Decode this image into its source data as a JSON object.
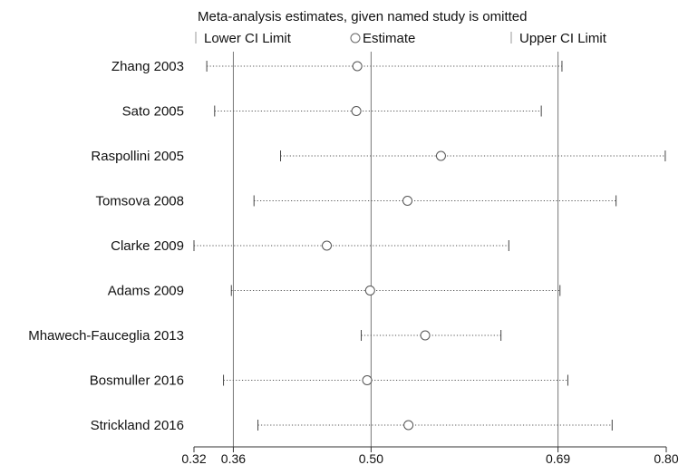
{
  "chart_data": {
    "type": "forest",
    "title": "Meta-analysis estimates, given named study is omitted",
    "legend": {
      "placement": "top",
      "lower_label": "Lower CI Limit",
      "estimate_label": "Estimate",
      "upper_label": "Upper CI Limit"
    },
    "x_ticks": [
      {
        "value": 0.32,
        "label": "0.32"
      },
      {
        "value": 0.36,
        "label": "0.36"
      },
      {
        "value": 0.5,
        "label": "0.50"
      },
      {
        "value": 0.69,
        "label": "0.69"
      },
      {
        "value": 0.8,
        "label": "0.80"
      }
    ],
    "xlim": [
      0.32,
      0.8
    ],
    "reference_lines": [
      0.36,
      0.5,
      0.69
    ],
    "studies": [
      {
        "name": "Zhang 2003",
        "lower": 0.333,
        "estimate": 0.486,
        "upper": 0.694
      },
      {
        "name": "Sato 2005",
        "lower": 0.341,
        "estimate": 0.485,
        "upper": 0.673
      },
      {
        "name": "Raspollini 2005",
        "lower": 0.408,
        "estimate": 0.571,
        "upper": 0.799
      },
      {
        "name": "Tomsova 2008",
        "lower": 0.381,
        "estimate": 0.537,
        "upper": 0.749
      },
      {
        "name": "Clarke 2009",
        "lower": 0.32,
        "estimate": 0.455,
        "upper": 0.64
      },
      {
        "name": "Adams 2009",
        "lower": 0.358,
        "estimate": 0.499,
        "upper": 0.692
      },
      {
        "name": "Mhawech-Fauceglia 2013",
        "lower": 0.49,
        "estimate": 0.555,
        "upper": 0.632
      },
      {
        "name": "Bosmuller 2016",
        "lower": 0.35,
        "estimate": 0.496,
        "upper": 0.7
      },
      {
        "name": "Strickland 2016",
        "lower": 0.385,
        "estimate": 0.538,
        "upper": 0.745
      }
    ]
  }
}
